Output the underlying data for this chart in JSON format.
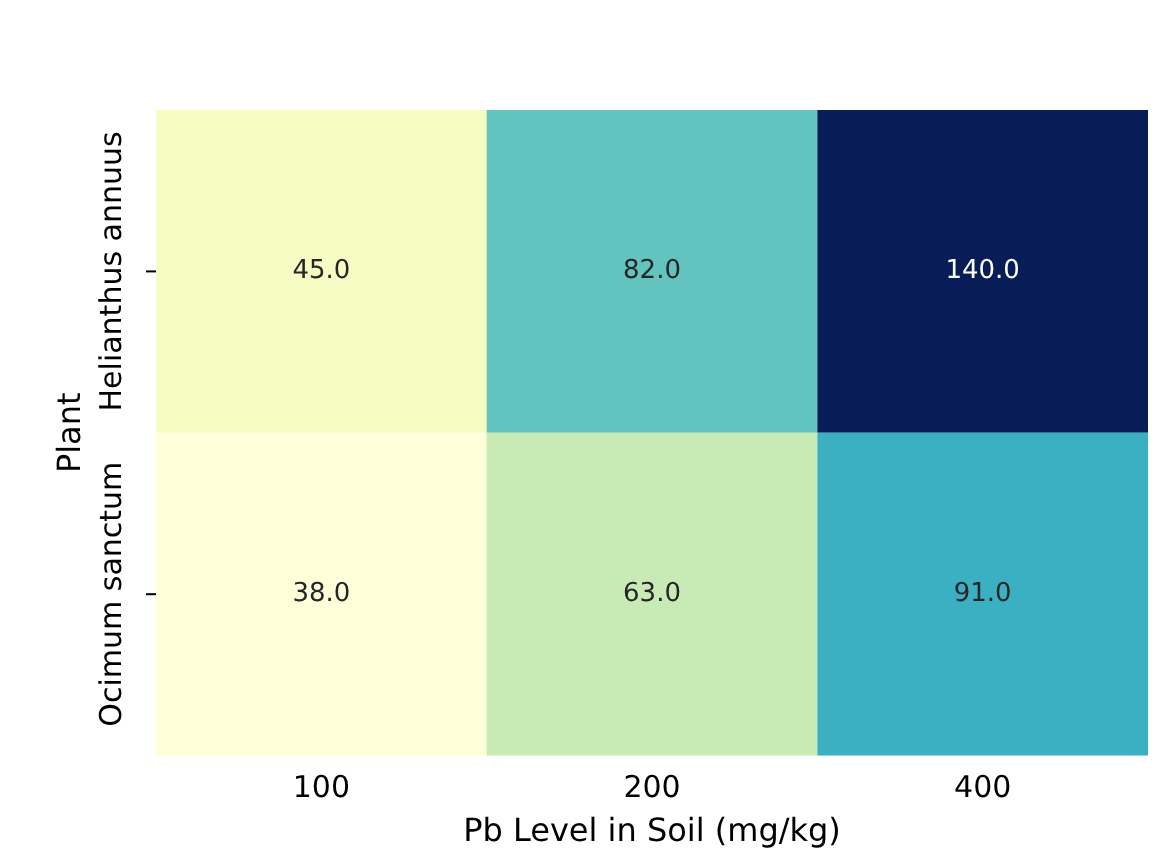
{
  "chart_data": {
    "type": "heatmap",
    "xlabel": "Pb Level in Soil (mg/kg)",
    "ylabel": "Plant",
    "categories": [
      "100",
      "200",
      "400"
    ],
    "y_categories": [
      "Helianthus annuus",
      "Ocimum sanctum"
    ],
    "cells": [
      [
        45.0,
        82.0,
        140.0
      ],
      [
        38.0,
        63.0,
        91.0
      ]
    ],
    "cell_labels": [
      [
        "45.0",
        "82.0",
        "140.0"
      ],
      [
        "38.0",
        "63.0",
        "91.0"
      ]
    ]
  }
}
